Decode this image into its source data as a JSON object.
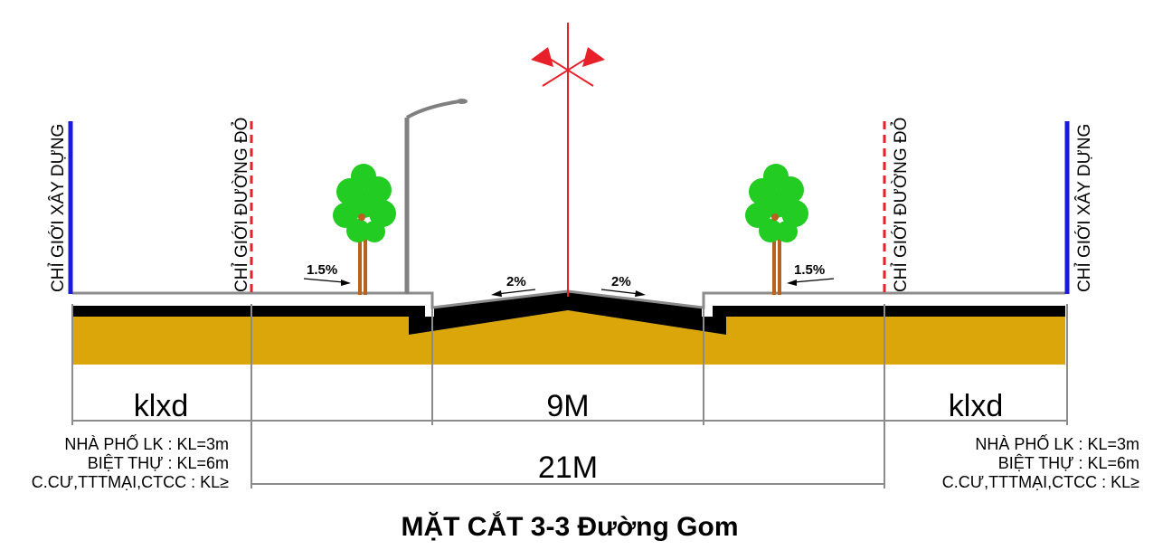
{
  "labels": {
    "building_line": "CHỈ GIỚI XÂY DỰNG",
    "red_line": "CHỈ GIỚI ĐƯỜNG ĐỎ"
  },
  "slopes": {
    "sidewalk_left": "1.5%",
    "road_left": "2%",
    "road_right": "2%",
    "sidewalk_right": "1.5%"
  },
  "dimensions": {
    "setback_left": "klxd",
    "road_width": "9M",
    "setback_right": "klxd",
    "total_width": "21M"
  },
  "setback_notes": {
    "left": [
      "NHÀ PHỐ LK : KL=3m",
      "BIỆT THỰ : KL=6m",
      "C.CƯ,TTTMẠI,CTCC : KL≥"
    ],
    "right": [
      "NHÀ PHỐ LK : KL=3m",
      "BIỆT THỰ : KL=6m",
      "C.CƯ,TTTMẠI,CTCC : KL≥"
    ]
  },
  "title": "MẶT CẮT 3-3 Đường Gom",
  "colors": {
    "building_line": "#1a1adc",
    "red_line": "#e8202a",
    "subgrade": "#dba60a",
    "tree_leaves": "#22cc22",
    "tree_trunk": "#b8621e",
    "pole": "#808080"
  }
}
